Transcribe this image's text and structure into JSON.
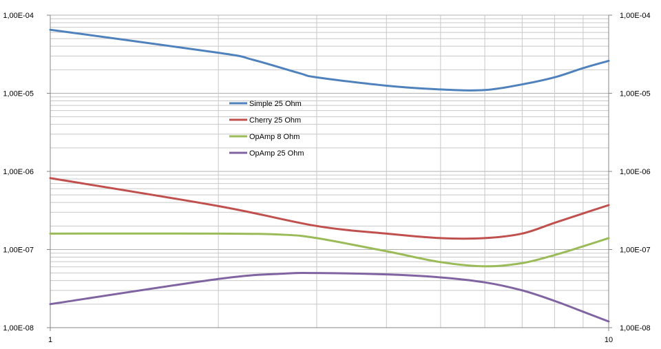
{
  "chart_data": {
    "type": "line",
    "title": "",
    "xlabel": "",
    "ylabel": "",
    "x_scale": "log",
    "y_scale": "log",
    "xlim": [
      1,
      10
    ],
    "ylim": [
      1e-08,
      0.0001
    ],
    "grid": true,
    "legend_position": "center-left",
    "x_ticks": [
      {
        "value": 1,
        "label": "1"
      },
      {
        "value": 10,
        "label": "10"
      }
    ],
    "y_ticks": [
      {
        "value": 0.0001,
        "label": "1,00E-04"
      },
      {
        "value": 1e-05,
        "label": "1,00E-05"
      },
      {
        "value": 1e-06,
        "label": "1,00E-06"
      },
      {
        "value": 1e-07,
        "label": "1,00E-07"
      },
      {
        "value": 1e-08,
        "label": "1,00E-08"
      }
    ],
    "series": [
      {
        "name": "Simple 25 Ohm",
        "color": "#4f81bd",
        "points": [
          [
            1,
            6.5e-05
          ],
          [
            2,
            3.3e-05
          ],
          [
            2.3,
            2.7e-05
          ],
          [
            2.8,
            1.8e-05
          ],
          [
            3,
            1.6e-05
          ],
          [
            4,
            1.25e-05
          ],
          [
            5,
            1.12e-05
          ],
          [
            6,
            1.1e-05
          ],
          [
            7,
            1.3e-05
          ],
          [
            8,
            1.6e-05
          ],
          [
            9,
            2.1e-05
          ],
          [
            10,
            2.6e-05
          ]
        ]
      },
      {
        "name": "Cherry 25 Ohm",
        "color": "#c0504d",
        "points": [
          [
            1,
            8.2e-07
          ],
          [
            2,
            3.6e-07
          ],
          [
            3,
            2e-07
          ],
          [
            4,
            1.6e-07
          ],
          [
            5,
            1.4e-07
          ],
          [
            6,
            1.4e-07
          ],
          [
            7,
            1.6e-07
          ],
          [
            8,
            2.2e-07
          ],
          [
            9,
            2.9e-07
          ],
          [
            10,
            3.7e-07
          ]
        ]
      },
      {
        "name": "OpAmp 8 Ohm",
        "color": "#9bbb59",
        "points": [
          [
            1,
            1.6e-07
          ],
          [
            2,
            1.6e-07
          ],
          [
            2.6,
            1.55e-07
          ],
          [
            3,
            1.4e-07
          ],
          [
            4,
            9.5e-08
          ],
          [
            5,
            6.9e-08
          ],
          [
            6,
            6.1e-08
          ],
          [
            7,
            6.7e-08
          ],
          [
            8,
            8.5e-08
          ],
          [
            9,
            1.1e-07
          ],
          [
            10,
            1.4e-07
          ]
        ]
      },
      {
        "name": "OpAmp 25 Ohm",
        "color": "#8064a2",
        "points": [
          [
            1,
            2e-08
          ],
          [
            2,
            4.2e-08
          ],
          [
            2.6,
            4.9e-08
          ],
          [
            3,
            5e-08
          ],
          [
            4,
            4.8e-08
          ],
          [
            5,
            4.4e-08
          ],
          [
            6,
            3.8e-08
          ],
          [
            7,
            3e-08
          ],
          [
            8,
            2.2e-08
          ],
          [
            9,
            1.6e-08
          ],
          [
            10,
            1.2e-08
          ]
        ]
      }
    ]
  }
}
